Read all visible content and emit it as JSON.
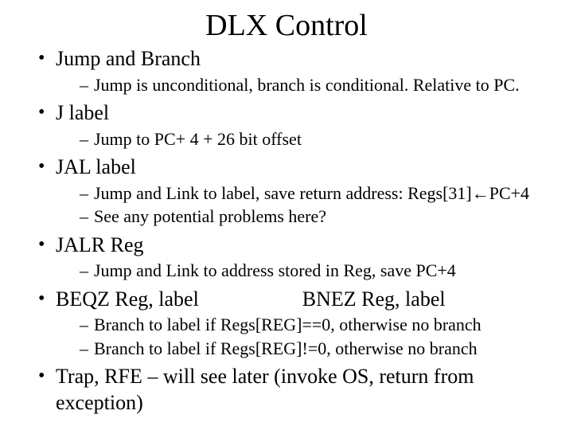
{
  "title": "DLX Control",
  "items": [
    {
      "text": "Jump and Branch",
      "sub": [
        "Jump is unconditional, branch is conditional.  Relative to PC."
      ]
    },
    {
      "text": "J  label",
      "sub": [
        "Jump to PC+ 4 + 26 bit offset"
      ]
    },
    {
      "text": "JAL label",
      "sub": [
        "Jump and Link to label, save return address: Regs[31]←PC+4",
        "See any potential problems here?"
      ]
    },
    {
      "text": "JALR   Reg",
      "sub": [
        "Jump and Link to address stored in Reg, save PC+4"
      ]
    },
    {
      "text_left": "BEQZ  Reg, label",
      "text_right": "BNEZ  Reg, label",
      "split": true,
      "sub": [
        "Branch to label if Regs[REG]==0, otherwise no branch",
        "Branch to label if Regs[REG]!=0, otherwise no branch"
      ]
    },
    {
      "text": "Trap, RFE – will see later (invoke OS, return from exception)",
      "sub": []
    }
  ]
}
